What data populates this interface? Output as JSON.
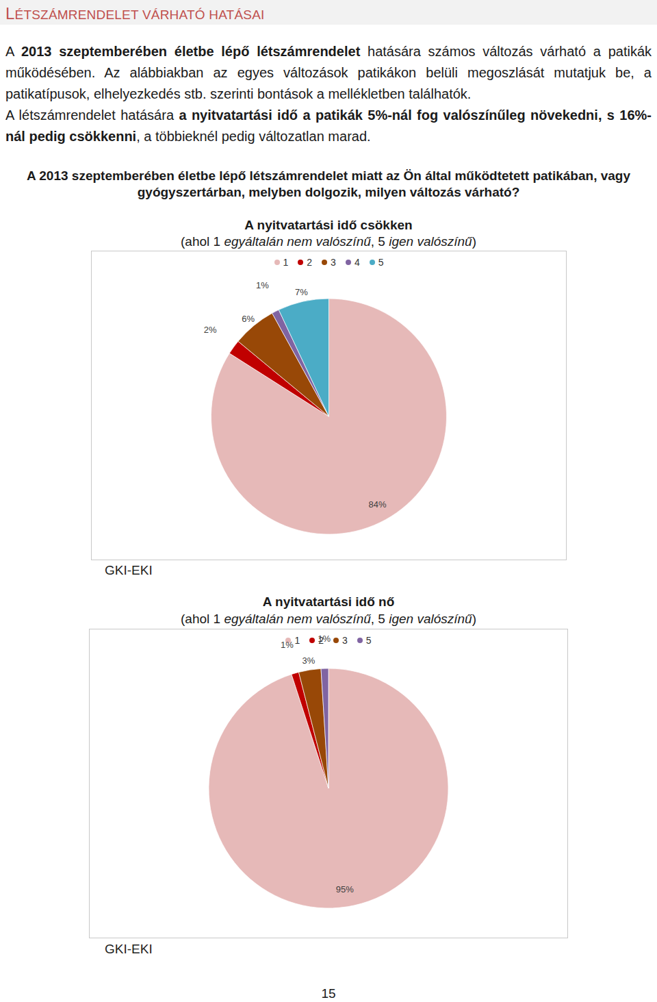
{
  "header": {
    "title": "LÉTSZÁMRENDELET VÁRHATÓ HATÁSAI"
  },
  "paragraphs": [
    [
      {
        "text": "A ",
        "bold": false
      },
      {
        "text": "2013 szeptemberében életbe lépő létszámrendelet",
        "bold": true
      },
      {
        "text": " hatására számos változás várható a patikák működésében. Az alábbiakban az egyes változások patikákon belüli megoszlását mutatjuk be, a patikatípusok, elhelyezkedés stb. szerinti bontások a mellékletben találhatók.",
        "bold": false
      }
    ],
    [
      {
        "text": "A létszámrendelet hatására ",
        "bold": false
      },
      {
        "text": "a nyitvatartási idő a patikák 5%-nál fog valószínűleg növekedni, s 16%-nál pedig csökkenni",
        "bold": true
      },
      {
        "text": ", a többieknél pedig változatlan marad.",
        "bold": false
      }
    ]
  ],
  "question": "A 2013 szeptemberében életbe lépő létszámrendelet miatt az Ön által működtetett patikában, vagy gyógyszertárban, melyben dolgozik, milyen változás várható?",
  "chart_data": [
    {
      "type": "pie",
      "title": "A nyitvatartási idő csökken",
      "subtitle": [
        {
          "text": "(ahol 1 ",
          "italic": false
        },
        {
          "text": "egyáltalán nem valószínű",
          "italic": true
        },
        {
          "text": ", 5 ",
          "italic": false
        },
        {
          "text": "igen valószínű",
          "italic": true
        },
        {
          "text": ")",
          "italic": false
        }
      ],
      "categories": [
        "1",
        "2",
        "3",
        "4",
        "5"
      ],
      "values": [
        84,
        2,
        6,
        1,
        7
      ],
      "value_labels": [
        "84%",
        "2%",
        "6%",
        "1%",
        "7%"
      ],
      "colors": [
        "#e6b9b8",
        "#c00000",
        "#984807",
        "#8064a2",
        "#4bacc6"
      ],
      "data_labels": true,
      "legend": "top",
      "source": "GKI-EKI"
    },
    {
      "type": "pie",
      "title": "A nyitvatartási idő nő",
      "subtitle": [
        {
          "text": "(ahol 1 ",
          "italic": false
        },
        {
          "text": "egyáltalán nem valószínű",
          "italic": true
        },
        {
          "text": ", 5 ",
          "italic": false
        },
        {
          "text": "igen valószínű",
          "italic": true
        },
        {
          "text": ")",
          "italic": false
        }
      ],
      "categories": [
        "1",
        "2",
        "3",
        "5"
      ],
      "values": [
        95,
        1,
        3,
        1
      ],
      "value_labels": [
        "95%",
        "1%",
        "3%",
        "1%"
      ],
      "colors": [
        "#e6b9b8",
        "#c00000",
        "#984807",
        "#8064a2"
      ],
      "data_labels": true,
      "legend": "top",
      "source": "GKI-EKI"
    }
  ],
  "page_number": "15"
}
